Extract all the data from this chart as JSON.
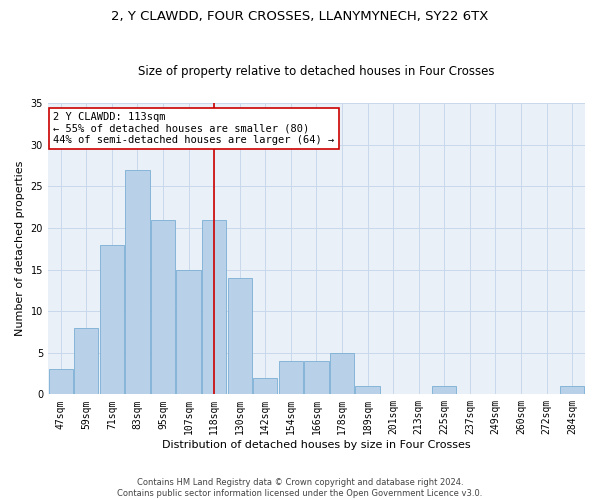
{
  "title": "2, Y CLAWDD, FOUR CROSSES, LLANYMYNECH, SY22 6TX",
  "subtitle": "Size of property relative to detached houses in Four Crosses",
  "xlabel": "Distribution of detached houses by size in Four Crosses",
  "ylabel": "Number of detached properties",
  "footer_line1": "Contains HM Land Registry data © Crown copyright and database right 2024.",
  "footer_line2": "Contains public sector information licensed under the Open Government Licence v3.0.",
  "categories": [
    "47sqm",
    "59sqm",
    "71sqm",
    "83sqm",
    "95sqm",
    "107sqm",
    "118sqm",
    "130sqm",
    "142sqm",
    "154sqm",
    "166sqm",
    "178sqm",
    "189sqm",
    "201sqm",
    "213sqm",
    "225sqm",
    "237sqm",
    "249sqm",
    "260sqm",
    "272sqm",
    "284sqm"
  ],
  "values": [
    3,
    8,
    18,
    27,
    21,
    15,
    21,
    14,
    2,
    4,
    4,
    5,
    1,
    0,
    0,
    1,
    0,
    0,
    0,
    0,
    1
  ],
  "bar_color": "#b8d0e8",
  "bar_edge_color": "#7aafd4",
  "annotation_text": "2 Y CLAWDD: 113sqm\n← 55% of detached houses are smaller (80)\n44% of semi-detached houses are larger (64) →",
  "vline_x": 6.0,
  "vline_color": "#cc0000",
  "annotation_box_color": "#ffffff",
  "annotation_box_edge": "#cc0000",
  "ylim": [
    0,
    35
  ],
  "yticks": [
    0,
    5,
    10,
    15,
    20,
    25,
    30,
    35
  ],
  "bg_color": "#ffffff",
  "grid_color": "#c8d8ea",
  "title_fontsize": 9.5,
  "subtitle_fontsize": 8.5,
  "axis_label_fontsize": 8,
  "tick_fontsize": 7,
  "footer_fontsize": 6,
  "annotation_fontsize": 7.5
}
